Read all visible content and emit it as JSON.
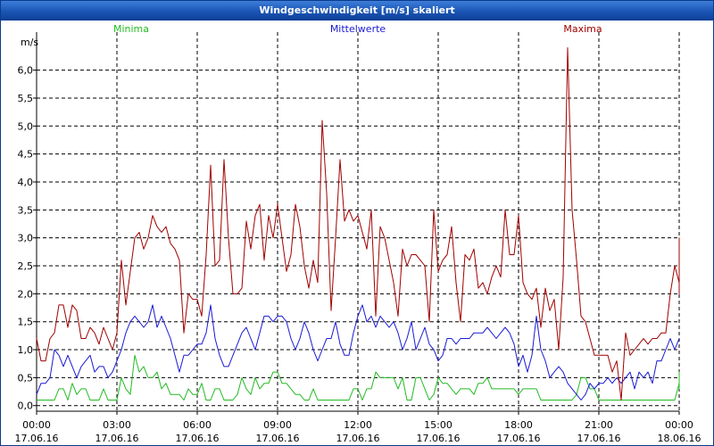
{
  "window": {
    "title": "Windgeschwindigkeit [m/s] skaliert"
  },
  "chart_data": {
    "type": "line",
    "title": "Windgeschwindigkeit [m/s] skaliert",
    "ylabel": "m/s",
    "xlabel": "",
    "ylim": [
      -0.1,
      6.6
    ],
    "xlim_hours": [
      0,
      24
    ],
    "grid": true,
    "y_ticks": [
      {
        "value": 0.0,
        "label": "0,0"
      },
      {
        "value": 0.5,
        "label": "0,5"
      },
      {
        "value": 1.0,
        "label": "1,0"
      },
      {
        "value": 1.5,
        "label": "1,5"
      },
      {
        "value": 2.0,
        "label": "2,0"
      },
      {
        "value": 2.5,
        "label": "2,5"
      },
      {
        "value": 3.0,
        "label": "3,0"
      },
      {
        "value": 3.5,
        "label": "3,5"
      },
      {
        "value": 4.0,
        "label": "4,0"
      },
      {
        "value": 4.5,
        "label": "4,5"
      },
      {
        "value": 5.0,
        "label": "5,0"
      },
      {
        "value": 5.5,
        "label": "5,5"
      },
      {
        "value": 6.0,
        "label": "6,0"
      }
    ],
    "x_ticks": [
      {
        "hour": 0,
        "time": "00:00",
        "date": "17.06.16"
      },
      {
        "hour": 3,
        "time": "03:00",
        "date": "17.06.16"
      },
      {
        "hour": 6,
        "time": "06:00",
        "date": "17.06.16"
      },
      {
        "hour": 9,
        "time": "09:00",
        "date": "17.06.16"
      },
      {
        "hour": 12,
        "time": "12:00",
        "date": "17.06.16"
      },
      {
        "hour": 15,
        "time": "15:00",
        "date": "17.06.16"
      },
      {
        "hour": 18,
        "time": "18:00",
        "date": "17.06.16"
      },
      {
        "hour": 21,
        "time": "21:00",
        "date": "17.06.16"
      },
      {
        "hour": 24,
        "time": "00:00",
        "date": "18.06.16"
      }
    ],
    "sample_interval_hours": 0.166667,
    "series": [
      {
        "name": "Minima",
        "color": "#22bb22",
        "values": [
          0.1,
          0.1,
          0.1,
          0.1,
          0.1,
          0.3,
          0.3,
          0.1,
          0.4,
          0.2,
          0.3,
          0.3,
          0.1,
          0.1,
          0.1,
          0.3,
          0.1,
          0.1,
          0.1,
          0.5,
          0.3,
          0.2,
          0.9,
          0.6,
          0.7,
          0.5,
          0.5,
          0.6,
          0.3,
          0.4,
          0.2,
          0.2,
          0.2,
          0.1,
          0.3,
          0.2,
          0.2,
          0.4,
          0.1,
          0.1,
          0.3,
          0.3,
          0.1,
          0.1,
          0.1,
          0.2,
          0.5,
          0.3,
          0.2,
          0.5,
          0.3,
          0.4,
          0.4,
          0.6,
          0.6,
          0.4,
          0.4,
          0.3,
          0.2,
          0.2,
          0.1,
          0.1,
          0.3,
          0.1,
          0.1,
          0.1,
          0.1,
          0.1,
          0.1,
          0.1,
          0.1,
          0.3,
          0.3,
          0.1,
          0.3,
          0.3,
          0.6,
          0.5,
          0.5,
          0.5,
          0.5,
          0.3,
          0.5,
          0.1,
          0.1,
          0.5,
          0.5,
          0.3,
          0.1,
          0.2,
          0.5,
          0.4,
          0.4,
          0.3,
          0.2,
          0.3,
          0.3,
          0.3,
          0.2,
          0.4,
          0.4,
          0.5,
          0.3,
          0.3,
          0.3,
          0.3,
          0.3,
          0.3,
          0.2,
          0.3,
          0.3,
          0.3,
          0.3,
          0.1,
          0.1,
          0.1,
          0.1,
          0.1,
          0.1,
          0.1,
          0.1,
          0.2,
          0.5,
          0.5,
          0.3,
          0.3,
          0.1,
          0.1,
          0.1,
          0.1,
          0.1,
          0.1,
          0.1,
          0.1,
          0.1,
          0.1,
          0.1,
          0.1,
          0.1,
          0.1,
          0.1,
          0.1,
          0.1,
          0.1,
          0.4,
          0.3,
          0.6,
          0.6,
          0.5
        ]
      },
      {
        "name": "Mittelwerte",
        "color": "#1a1ad4",
        "values": [
          0.2,
          0.4,
          0.4,
          0.5,
          1.0,
          0.9,
          0.7,
          0.9,
          0.7,
          0.5,
          0.7,
          0.8,
          0.9,
          0.6,
          0.7,
          0.7,
          0.5,
          0.6,
          0.8,
          1.0,
          1.3,
          1.5,
          1.6,
          1.5,
          1.4,
          1.5,
          1.8,
          1.4,
          1.6,
          1.4,
          1.2,
          0.9,
          0.6,
          0.9,
          0.9,
          1.0,
          1.1,
          1.1,
          1.3,
          1.8,
          1.2,
          0.9,
          0.7,
          0.7,
          0.9,
          1.1,
          1.3,
          1.4,
          1.2,
          1.0,
          1.3,
          1.6,
          1.6,
          1.5,
          1.6,
          1.6,
          1.5,
          1.2,
          1.0,
          1.2,
          1.5,
          1.3,
          1.0,
          0.8,
          1.0,
          1.2,
          1.2,
          1.5,
          1.1,
          0.9,
          0.9,
          1.3,
          1.6,
          1.8,
          1.5,
          1.6,
          1.4,
          1.6,
          1.5,
          1.4,
          1.5,
          1.3,
          1.0,
          1.2,
          1.5,
          1.0,
          1.2,
          1.4,
          1.1,
          1.0,
          0.8,
          0.9,
          1.2,
          1.2,
          1.1,
          1.2,
          1.2,
          1.2,
          1.3,
          1.3,
          1.3,
          1.4,
          1.3,
          1.2,
          1.3,
          1.4,
          1.3,
          1.1,
          0.7,
          0.9,
          0.6,
          0.9,
          1.6,
          1.0,
          0.8,
          0.5,
          0.6,
          0.7,
          0.6,
          0.4,
          0.3,
          0.2,
          0.1,
          0.2,
          0.4,
          0.3,
          0.4,
          0.4,
          0.5,
          0.4,
          0.5,
          0.4,
          0.5,
          0.6,
          0.3,
          0.6,
          0.5,
          0.6,
          0.4,
          0.8,
          0.8,
          1.0,
          1.2,
          1.0,
          1.2,
          1.2
        ]
      },
      {
        "name": "Maxima",
        "color": "#a00000",
        "values": [
          1.2,
          0.8,
          0.8,
          1.2,
          1.3,
          1.8,
          1.8,
          1.4,
          1.8,
          1.7,
          1.2,
          1.2,
          1.4,
          1.3,
          1.1,
          1.4,
          1.2,
          1.0,
          1.3,
          2.6,
          1.8,
          2.4,
          3.0,
          3.1,
          2.8,
          3.0,
          3.4,
          3.2,
          3.1,
          3.2,
          2.9,
          2.8,
          2.6,
          1.3,
          2.0,
          1.9,
          1.9,
          1.6,
          2.7,
          4.3,
          2.5,
          2.6,
          4.4,
          3.0,
          2.0,
          2.0,
          2.1,
          3.3,
          2.8,
          3.4,
          3.6,
          2.6,
          3.4,
          3.0,
          3.6,
          3.0,
          2.4,
          2.7,
          3.6,
          3.2,
          2.5,
          2.1,
          2.6,
          2.2,
          5.1,
          3.8,
          1.7,
          3.0,
          4.4,
          3.3,
          3.5,
          3.3,
          3.4,
          3.1,
          2.8,
          3.5,
          1.6,
          3.2,
          3.0,
          2.6,
          2.2,
          1.6,
          2.8,
          2.5,
          2.7,
          2.7,
          2.6,
          2.5,
          1.5,
          3.5,
          2.4,
          2.6,
          2.7,
          3.2,
          2.2,
          1.5,
          2.7,
          2.6,
          2.8,
          2.1,
          2.2,
          2.0,
          2.3,
          2.5,
          2.3,
          3.5,
          2.7,
          2.7,
          3.4,
          2.2,
          2.0,
          1.9,
          2.1,
          1.4,
          2.1,
          1.7,
          1.9,
          1.0,
          2.3,
          6.4,
          3.5,
          2.6,
          1.6,
          1.5,
          1.2,
          0.9,
          0.9,
          0.9,
          0.9,
          0.6,
          0.8,
          0.1,
          1.3,
          0.9,
          1.0,
          1.1,
          1.2,
          1.1,
          1.2,
          1.2,
          1.3,
          1.3,
          2.0,
          2.5,
          2.2,
          2.0,
          3.0,
          2.4
        ]
      }
    ]
  }
}
